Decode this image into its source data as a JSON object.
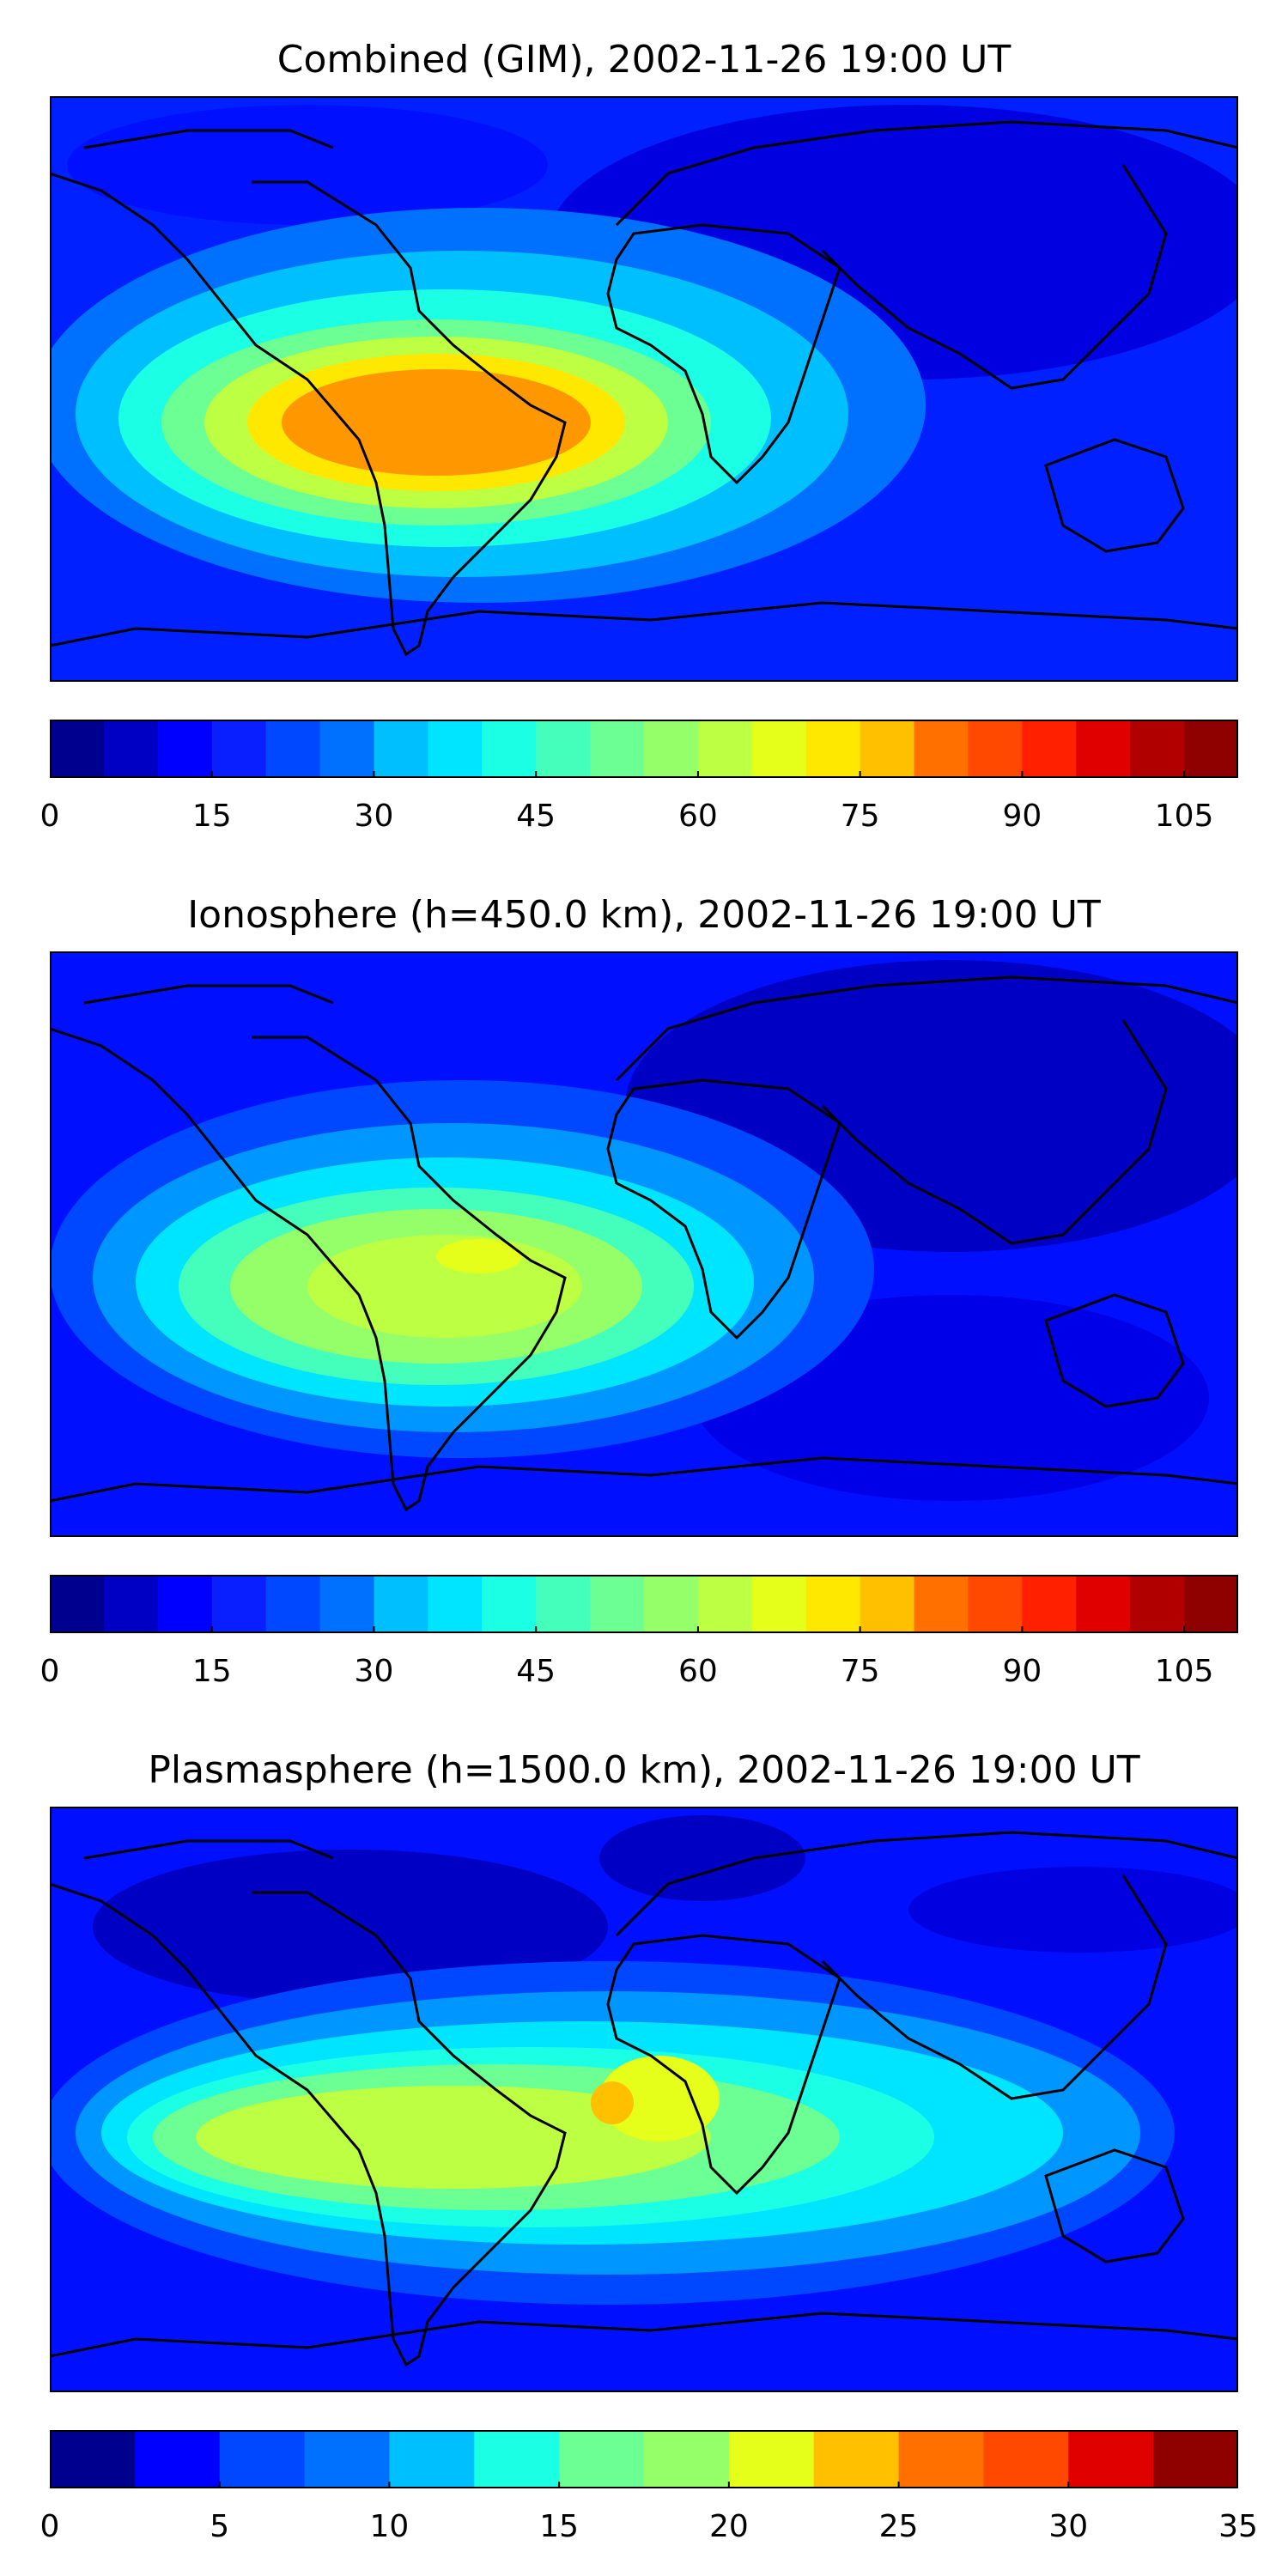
{
  "panels": [
    {
      "title": "Combined (GIM), 2002-11-26 19:00 UT",
      "colorbar": {
        "min": 0,
        "max": 110,
        "step": 5,
        "ticks": [
          "0",
          "15",
          "30",
          "45",
          "60",
          "75",
          "90",
          "105"
        ],
        "tick_values": [
          0,
          15,
          30,
          45,
          60,
          75,
          90,
          105
        ]
      }
    },
    {
      "title": "Ionosphere  (h=450.0 km), 2002-11-26 19:00 UT",
      "colorbar": {
        "min": 0,
        "max": 110,
        "step": 5,
        "ticks": [
          "0",
          "15",
          "30",
          "45",
          "60",
          "75",
          "90",
          "105"
        ],
        "tick_values": [
          0,
          15,
          30,
          45,
          60,
          75,
          90,
          105
        ]
      }
    },
    {
      "title": "Plasmasphere (h=1500.0 km), 2002-11-26 19:00 UT",
      "colorbar": {
        "min": 0,
        "max": 35,
        "step": 2.5,
        "ticks": [
          "0",
          "5",
          "10",
          "15",
          "20",
          "25",
          "30",
          "35"
        ],
        "tick_values": [
          0,
          5,
          10,
          15,
          20,
          25,
          30,
          35
        ]
      }
    }
  ],
  "colors": {
    "jet": [
      "#00008f",
      "#0000c4",
      "#0000ff",
      "#0a1fff",
      "#0048ff",
      "#0070ff",
      "#0096ff",
      "#00bfff",
      "#00e5ff",
      "#1bffe4",
      "#44ffbb",
      "#6cff93",
      "#95ff6a",
      "#bdff42",
      "#e5ff1a",
      "#ffe800",
      "#ffc000",
      "#ff9800",
      "#ff7000",
      "#ff4800",
      "#ff2000",
      "#e00000",
      "#b00000",
      "#8f0000"
    ],
    "coast": "#000000"
  }
}
